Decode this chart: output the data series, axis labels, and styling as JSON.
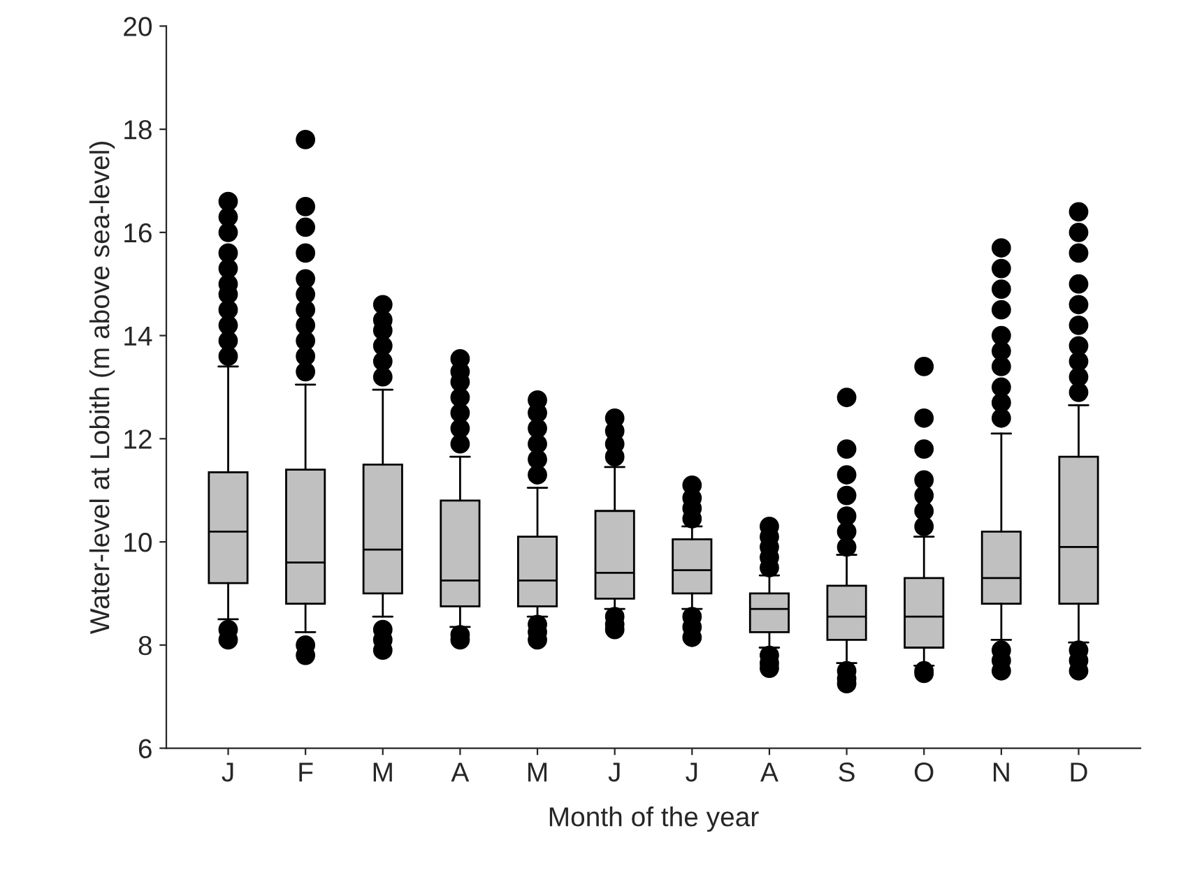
{
  "chart_data": {
    "type": "box",
    "xlabel": "Month of the year",
    "ylabel": "Water-level at Lobith (m above sea-level)",
    "categories": [
      "J",
      "F",
      "M",
      "A",
      "M",
      "J",
      "J",
      "A",
      "S",
      "O",
      "N",
      "D"
    ],
    "color": "#c0c0c0",
    "ylim": [
      6,
      20
    ],
    "yticks": [
      6,
      8,
      10,
      12,
      14,
      16,
      18,
      20
    ],
    "grid": false,
    "boxes": [
      {
        "low": 8.5,
        "q1": 9.2,
        "median": 10.2,
        "q3": 11.35,
        "high": 13.4,
        "outliers": [
          13.6,
          13.9,
          14.2,
          14.5,
          14.8,
          15.0,
          15.3,
          15.6,
          16.0,
          16.3,
          16.6,
          8.3,
          8.1
        ]
      },
      {
        "low": 8.25,
        "q1": 8.8,
        "median": 9.6,
        "q3": 11.4,
        "high": 13.05,
        "outliers": [
          13.3,
          13.6,
          13.9,
          14.2,
          14.5,
          14.8,
          15.1,
          15.6,
          16.1,
          16.5,
          17.8,
          8.0,
          7.8
        ]
      },
      {
        "low": 8.55,
        "q1": 9.0,
        "median": 9.85,
        "q3": 11.5,
        "high": 12.95,
        "outliers": [
          13.2,
          13.5,
          13.8,
          14.1,
          14.3,
          14.6,
          8.3,
          8.1,
          7.9
        ]
      },
      {
        "low": 8.35,
        "q1": 8.75,
        "median": 9.25,
        "q3": 10.8,
        "high": 11.65,
        "outliers": [
          11.9,
          12.2,
          12.5,
          12.8,
          13.1,
          13.3,
          13.55,
          8.2,
          8.1
        ]
      },
      {
        "low": 8.55,
        "q1": 8.75,
        "median": 9.25,
        "q3": 10.1,
        "high": 11.05,
        "outliers": [
          11.3,
          11.6,
          11.9,
          12.2,
          12.5,
          12.75,
          8.4,
          8.25,
          8.1
        ]
      },
      {
        "low": 8.7,
        "q1": 8.9,
        "median": 9.4,
        "q3": 10.6,
        "high": 11.45,
        "outliers": [
          11.65,
          11.9,
          12.15,
          12.4,
          8.55,
          8.4,
          8.3
        ]
      },
      {
        "low": 8.7,
        "q1": 9.0,
        "median": 9.45,
        "q3": 10.05,
        "high": 10.3,
        "outliers": [
          10.45,
          10.65,
          10.85,
          11.1,
          8.55,
          8.35,
          8.15
        ]
      },
      {
        "low": 7.95,
        "q1": 8.25,
        "median": 8.7,
        "q3": 9.0,
        "high": 9.35,
        "outliers": [
          9.5,
          9.7,
          9.9,
          10.1,
          10.3,
          7.8,
          7.65,
          7.55
        ]
      },
      {
        "low": 7.65,
        "q1": 8.1,
        "median": 8.55,
        "q3": 9.15,
        "high": 9.75,
        "outliers": [
          9.9,
          10.2,
          10.5,
          10.9,
          11.3,
          11.8,
          12.8,
          7.5,
          7.35,
          7.25
        ]
      },
      {
        "low": 7.6,
        "q1": 7.95,
        "median": 8.55,
        "q3": 9.3,
        "high": 10.1,
        "outliers": [
          10.3,
          10.6,
          10.9,
          11.2,
          11.8,
          12.4,
          13.4,
          7.5,
          7.45
        ]
      },
      {
        "low": 8.1,
        "q1": 8.8,
        "median": 9.3,
        "q3": 10.2,
        "high": 12.1,
        "outliers": [
          12.4,
          12.7,
          13.0,
          13.4,
          13.7,
          14.0,
          14.5,
          14.9,
          15.3,
          15.7,
          7.9,
          7.7,
          7.5
        ]
      },
      {
        "low": 8.05,
        "q1": 8.8,
        "median": 9.9,
        "q3": 11.65,
        "high": 12.65,
        "outliers": [
          12.9,
          13.2,
          13.5,
          13.8,
          14.2,
          14.6,
          15.0,
          15.6,
          16.0,
          16.4,
          7.9,
          7.7,
          7.5
        ]
      }
    ]
  }
}
